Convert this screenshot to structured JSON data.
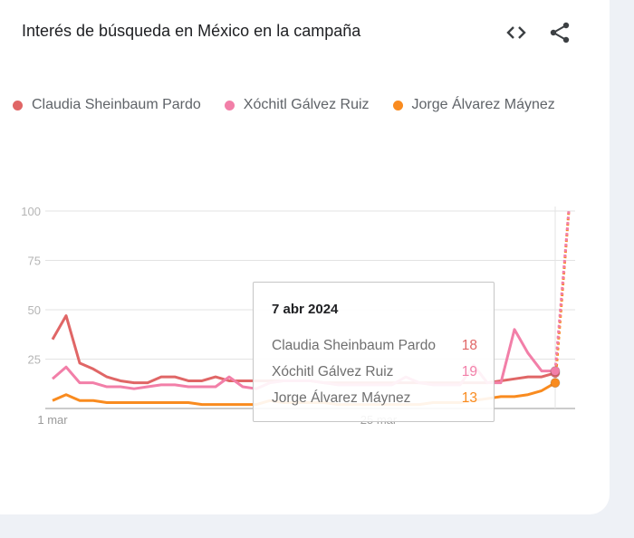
{
  "title": "Interés de búsqueda en México en la campaña",
  "icons": {
    "embed": "code-embed-icon",
    "share": "share-icon"
  },
  "chart_data": {
    "type": "line",
    "title": "Interés de búsqueda en México en la campaña",
    "ylim": [
      0,
      100
    ],
    "yticks": [
      "100",
      "75",
      "50",
      "25"
    ],
    "ytick_values": [
      100,
      75,
      50,
      25
    ],
    "xtick_labels": [
      "1 mar",
      "25 mar"
    ],
    "xtick_days": [
      0,
      24
    ],
    "x_start": "1 mar 2024",
    "x_end": "7 abr 2024",
    "grid": true,
    "legend_position": "top-left",
    "series": [
      {
        "name": "Claudia Sheinbaum Pardo",
        "color": "#e06666",
        "values": [
          35,
          47,
          23,
          20,
          16,
          14,
          13,
          13,
          16,
          16,
          14,
          14,
          16,
          14,
          14,
          14,
          14,
          14,
          14,
          14,
          13,
          13,
          13,
          13,
          13,
          13,
          13,
          13,
          13,
          13,
          13,
          13,
          13,
          14,
          15,
          16,
          16,
          18
        ]
      },
      {
        "name": "Xóchitl Gálvez Ruiz",
        "color": "#f27fa8",
        "values": [
          15,
          21,
          13,
          13,
          11,
          11,
          10,
          11,
          12,
          12,
          11,
          11,
          11,
          16,
          11,
          10,
          13,
          14,
          14,
          14,
          13,
          12,
          12,
          12,
          12,
          12,
          16,
          13,
          12,
          12,
          12,
          22,
          13,
          13,
          40,
          28,
          19,
          19
        ]
      },
      {
        "name": "Jorge Álvarez Máynez",
        "color": "#f98b1f",
        "values": [
          4,
          7,
          4,
          4,
          3,
          3,
          3,
          3,
          3,
          3,
          3,
          2,
          2,
          2,
          2,
          2,
          4,
          3,
          3,
          3,
          3,
          2,
          2,
          2,
          2,
          2,
          2,
          2,
          3,
          3,
          3,
          4,
          5,
          6,
          6,
          7,
          9,
          13
        ]
      }
    ],
    "projection": {
      "style": "dotted",
      "to_value": 100
    },
    "tooltip": {
      "date": "7 abr 2024",
      "rows": [
        {
          "name": "Claudia Sheinbaum Pardo",
          "value": "18",
          "color": "#e06666"
        },
        {
          "name": "Xóchitl Gálvez Ruiz",
          "value": "19",
          "color": "#f27fa8"
        },
        {
          "name": "Jorge Álvarez Máynez",
          "value": "13",
          "color": "#f98b1f"
        }
      ]
    }
  }
}
